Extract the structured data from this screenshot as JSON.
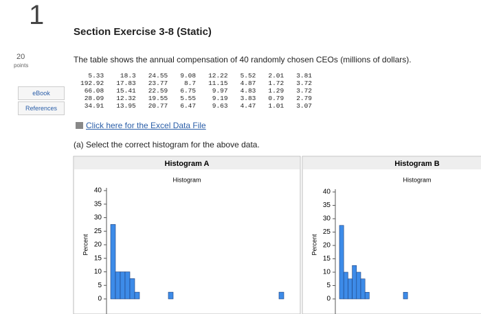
{
  "header": {
    "number": "1",
    "points": "20",
    "points_label": "points"
  },
  "sidebar": [
    "eBook",
    "References"
  ],
  "title": "Section Exercise 3-8 (Static)",
  "intro": "The table shows the annual compensation of 40 randomly chosen CEOs (millions of dollars).",
  "table": {
    "rows": [
      [
        "5.33",
        "18.3",
        "24.55",
        "9.08",
        "12.22",
        "5.52",
        "2.01",
        "3.81"
      ],
      [
        "192.92",
        "17.83",
        "23.77",
        "8.7",
        "11.15",
        "4.87",
        "1.72",
        "3.72"
      ],
      [
        "66.08",
        "15.41",
        "22.59",
        "6.75",
        "9.97",
        "4.83",
        "1.29",
        "3.72"
      ],
      [
        "28.09",
        "12.32",
        "19.55",
        "5.55",
        "9.19",
        "3.83",
        "0.79",
        "2.79"
      ],
      [
        "34.91",
        "13.95",
        "20.77",
        "6.47",
        "9.63",
        "4.47",
        "1.01",
        "3.07"
      ]
    ]
  },
  "link": "Click here for the Excel Data File",
  "question": "(a) Select the correct histogram for the above data.",
  "histograms": [
    {
      "title": "Histogram A",
      "subtitle": "Histogram",
      "y_label": "Percent",
      "ylim": [
        0,
        40
      ],
      "yticks": [
        0,
        5,
        10,
        15,
        20,
        25,
        30,
        35,
        40
      ],
      "values": [
        27.5,
        10,
        10,
        10,
        7.5,
        2.5,
        0,
        0,
        0,
        0,
        0,
        0,
        2.5,
        0,
        0,
        0,
        0,
        0,
        0,
        0,
        0,
        0,
        0,
        0,
        0,
        0,
        0,
        0,
        0,
        0,
        0,
        0,
        0,
        0,
        0,
        2.5
      ]
    },
    {
      "title": "Histogram B",
      "subtitle": "Histogram",
      "y_label": "Percent",
      "ylim": [
        0,
        40
      ],
      "yticks": [
        0,
        5,
        10,
        15,
        20,
        25,
        30,
        35,
        40
      ],
      "values": [
        27.5,
        10,
        7.5,
        12.5,
        10,
        7.5,
        2.5,
        0,
        0,
        0,
        0,
        0,
        0,
        0,
        0,
        2.5
      ]
    }
  ]
}
